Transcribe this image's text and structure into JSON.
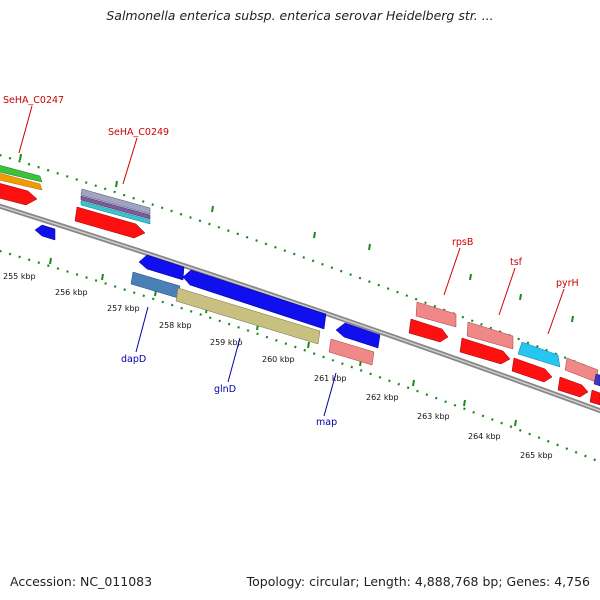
{
  "title": "Salmonella enterica subsp. enterica serovar Heidelberg str. ...",
  "footer": {
    "accession": "Accession: NC_011083",
    "summary": "Topology: circular; Length: 4,888,768 bp; Genes: 4,756"
  },
  "kbp_labels": [
    "255 kbp",
    "256 kbp",
    "257 kbp",
    "258 kbp",
    "259 kbp",
    "260 kbp",
    "261 kbp",
    "262 kbp",
    "263 kbp",
    "264 kbp",
    "265 kbp"
  ],
  "gene_labels": {
    "forward": [
      "SeHA_C0247",
      "SeHA_C0249",
      "rpsB",
      "tsf",
      "pyrH"
    ],
    "reverse": [
      "dapD",
      "glnD",
      "map"
    ]
  },
  "colors": {
    "forward_label": "#cc0000",
    "reverse_label": "#0000aa",
    "tick": "#1a8a1a",
    "backbone": "#999999"
  }
}
